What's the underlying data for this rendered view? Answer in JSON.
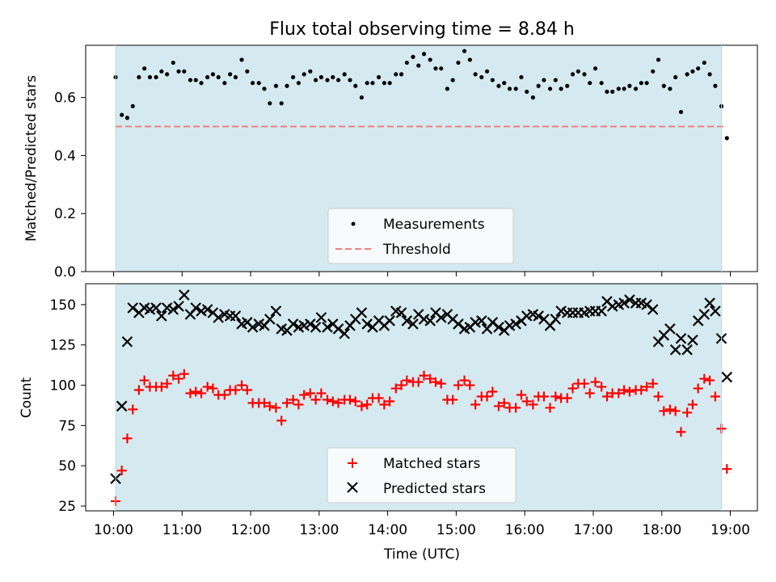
{
  "figure": {
    "title": "Flux total observing time = 8.84 h",
    "xlabel": "Time (UTC)",
    "x_tick_labels": [
      "10:00",
      "11:00",
      "12:00",
      "13:00",
      "14:00",
      "15:00",
      "16:00",
      "17:00",
      "18:00",
      "19:00"
    ],
    "shade_color": "#d4eaf0"
  },
  "chart_data": [
    {
      "type": "scatter",
      "panel": "top",
      "ylabel": "Matched/Predicted stars",
      "ylim": [
        0,
        0.78
      ],
      "yticks": [
        0.0,
        0.2,
        0.4,
        0.6
      ],
      "ytick_labels": [
        "0.0",
        "0.2",
        "0.4",
        "0.6"
      ],
      "x_unit": "hours UTC",
      "observing_window": [
        10.03,
        18.87
      ],
      "legend": {
        "position": "lower center",
        "entries": [
          "Measurements",
          "Threshold"
        ]
      },
      "series": [
        {
          "name": "Measurements",
          "kind": "scatter",
          "color": "#000000",
          "x": [
            10.03,
            10.12,
            10.2,
            10.28,
            10.37,
            10.45,
            10.53,
            10.62,
            10.7,
            10.78,
            10.87,
            10.95,
            11.03,
            11.12,
            11.2,
            11.28,
            11.37,
            11.45,
            11.53,
            11.62,
            11.7,
            11.78,
            11.87,
            11.95,
            12.03,
            12.12,
            12.2,
            12.28,
            12.37,
            12.45,
            12.53,
            12.62,
            12.7,
            12.78,
            12.87,
            12.95,
            13.03,
            13.12,
            13.2,
            13.28,
            13.37,
            13.45,
            13.53,
            13.62,
            13.7,
            13.78,
            13.87,
            13.95,
            14.03,
            14.12,
            14.2,
            14.28,
            14.37,
            14.45,
            14.53,
            14.62,
            14.7,
            14.78,
            14.87,
            14.95,
            15.03,
            15.12,
            15.2,
            15.28,
            15.37,
            15.45,
            15.53,
            15.62,
            15.7,
            15.78,
            15.87,
            15.95,
            16.03,
            16.12,
            16.2,
            16.28,
            16.37,
            16.45,
            16.53,
            16.62,
            16.7,
            16.78,
            16.87,
            16.95,
            17.03,
            17.12,
            17.2,
            17.28,
            17.37,
            17.45,
            17.53,
            17.62,
            17.7,
            17.78,
            17.87,
            17.95,
            18.03,
            18.12,
            18.2,
            18.28,
            18.37,
            18.45,
            18.53,
            18.62,
            18.7,
            18.78,
            18.87,
            18.95
          ],
          "y": [
            0.67,
            0.54,
            0.53,
            0.57,
            0.67,
            0.7,
            0.67,
            0.67,
            0.69,
            0.68,
            0.72,
            0.69,
            0.69,
            0.66,
            0.66,
            0.65,
            0.67,
            0.68,
            0.67,
            0.65,
            0.68,
            0.67,
            0.73,
            0.69,
            0.65,
            0.65,
            0.63,
            0.58,
            0.64,
            0.58,
            0.64,
            0.67,
            0.65,
            0.68,
            0.69,
            0.66,
            0.67,
            0.66,
            0.67,
            0.66,
            0.68,
            0.66,
            0.64,
            0.6,
            0.65,
            0.65,
            0.67,
            0.65,
            0.65,
            0.68,
            0.68,
            0.72,
            0.74,
            0.71,
            0.75,
            0.73,
            0.7,
            0.7,
            0.63,
            0.66,
            0.72,
            0.76,
            0.73,
            0.68,
            0.67,
            0.69,
            0.66,
            0.64,
            0.65,
            0.63,
            0.63,
            0.67,
            0.62,
            0.6,
            0.64,
            0.66,
            0.63,
            0.66,
            0.63,
            0.64,
            0.68,
            0.69,
            0.68,
            0.65,
            0.7,
            0.65,
            0.62,
            0.62,
            0.63,
            0.63,
            0.64,
            0.63,
            0.65,
            0.65,
            0.69,
            0.73,
            0.64,
            0.63,
            0.67,
            0.55,
            0.68,
            0.69,
            0.7,
            0.72,
            0.68,
            0.64,
            0.57,
            0.46
          ]
        },
        {
          "name": "Threshold",
          "kind": "dashed-line",
          "color": "#f08080",
          "x": [
            10.03,
            18.95
          ],
          "y": [
            0.5,
            0.5
          ]
        }
      ]
    },
    {
      "type": "scatter",
      "panel": "bottom",
      "ylabel": "Count",
      "ylim": [
        22,
        163
      ],
      "yticks": [
        25,
        50,
        75,
        100,
        125,
        150
      ],
      "ytick_labels": [
        "25",
        "50",
        "75",
        "100",
        "125",
        "150"
      ],
      "x_unit": "hours UTC",
      "observing_window": [
        10.03,
        18.87
      ],
      "legend": {
        "position": "lower center",
        "entries": [
          "Matched stars",
          "Predicted stars"
        ]
      },
      "series": [
        {
          "name": "Matched stars",
          "marker": "plus",
          "color": "#ff0000",
          "x": [
            10.03,
            10.12,
            10.2,
            10.28,
            10.37,
            10.45,
            10.53,
            10.62,
            10.7,
            10.78,
            10.87,
            10.95,
            11.03,
            11.12,
            11.2,
            11.28,
            11.37,
            11.45,
            11.53,
            11.62,
            11.7,
            11.78,
            11.87,
            11.95,
            12.03,
            12.12,
            12.2,
            12.28,
            12.37,
            12.45,
            12.53,
            12.62,
            12.7,
            12.78,
            12.87,
            12.95,
            13.03,
            13.12,
            13.2,
            13.28,
            13.37,
            13.45,
            13.53,
            13.62,
            13.7,
            13.78,
            13.87,
            13.95,
            14.03,
            14.12,
            14.2,
            14.28,
            14.37,
            14.45,
            14.53,
            14.62,
            14.7,
            14.78,
            14.87,
            14.95,
            15.03,
            15.12,
            15.2,
            15.28,
            15.37,
            15.45,
            15.53,
            15.62,
            15.7,
            15.78,
            15.87,
            15.95,
            16.03,
            16.12,
            16.2,
            16.28,
            16.37,
            16.45,
            16.53,
            16.62,
            16.7,
            16.78,
            16.87,
            16.95,
            17.03,
            17.12,
            17.2,
            17.28,
            17.37,
            17.45,
            17.53,
            17.62,
            17.7,
            17.78,
            17.87,
            17.95,
            18.03,
            18.12,
            18.2,
            18.28,
            18.37,
            18.45,
            18.53,
            18.62,
            18.7,
            18.78,
            18.87,
            18.95
          ],
          "y": [
            28,
            47,
            67,
            85,
            97,
            103,
            99,
            99,
            99,
            101,
            106,
            104,
            107,
            95,
            96,
            95,
            99,
            98,
            94,
            94,
            97,
            97,
            100,
            97,
            89,
            89,
            89,
            87,
            86,
            78,
            89,
            91,
            88,
            94,
            95,
            91,
            95,
            91,
            90,
            89,
            91,
            91,
            90,
            87,
            88,
            92,
            92,
            88,
            90,
            98,
            100,
            103,
            102,
            102,
            106,
            104,
            102,
            101,
            91,
            91,
            100,
            103,
            100,
            88,
            93,
            93,
            96,
            87,
            89,
            86,
            86,
            94,
            90,
            88,
            93,
            93,
            86,
            93,
            92,
            92,
            98,
            101,
            101,
            95,
            102,
            99,
            93,
            95,
            95,
            97,
            96,
            97,
            97,
            99,
            101,
            93,
            84,
            85,
            84,
            71,
            83,
            88,
            98,
            104,
            103,
            93,
            73,
            48
          ]
        },
        {
          "name": "Predicted stars",
          "marker": "x",
          "color": "#000000",
          "x": [
            10.03,
            10.12,
            10.2,
            10.28,
            10.37,
            10.45,
            10.53,
            10.62,
            10.7,
            10.78,
            10.87,
            10.95,
            11.03,
            11.12,
            11.2,
            11.28,
            11.37,
            11.45,
            11.53,
            11.62,
            11.7,
            11.78,
            11.87,
            11.95,
            12.03,
            12.12,
            12.2,
            12.28,
            12.37,
            12.45,
            12.53,
            12.62,
            12.7,
            12.78,
            12.87,
            12.95,
            13.03,
            13.12,
            13.2,
            13.28,
            13.37,
            13.45,
            13.53,
            13.62,
            13.7,
            13.78,
            13.87,
            13.95,
            14.03,
            14.12,
            14.2,
            14.28,
            14.37,
            14.45,
            14.53,
            14.62,
            14.7,
            14.78,
            14.87,
            14.95,
            15.03,
            15.12,
            15.2,
            15.28,
            15.37,
            15.45,
            15.53,
            15.62,
            15.7,
            15.78,
            15.87,
            15.95,
            16.03,
            16.12,
            16.2,
            16.28,
            16.37,
            16.45,
            16.53,
            16.62,
            16.7,
            16.78,
            16.87,
            16.95,
            17.03,
            17.12,
            17.2,
            17.28,
            17.37,
            17.45,
            17.53,
            17.62,
            17.7,
            17.78,
            17.87,
            17.95,
            18.03,
            18.12,
            18.2,
            18.28,
            18.37,
            18.45,
            18.53,
            18.62,
            18.7,
            18.78,
            18.87,
            18.95
          ],
          "y": [
            42,
            87,
            127,
            148,
            145,
            148,
            147,
            148,
            143,
            148,
            147,
            149,
            156,
            144,
            148,
            146,
            147,
            145,
            142,
            144,
            143,
            143,
            138,
            139,
            136,
            138,
            137,
            141,
            146,
            135,
            134,
            138,
            136,
            137,
            138,
            136,
            142,
            136,
            138,
            135,
            132,
            137,
            141,
            145,
            138,
            136,
            140,
            137,
            140,
            146,
            145,
            140,
            138,
            144,
            141,
            140,
            145,
            142,
            144,
            141,
            138,
            135,
            136,
            139,
            140,
            135,
            139,
            136,
            134,
            137,
            138,
            140,
            143,
            144,
            143,
            141,
            137,
            141,
            146,
            145,
            145,
            145,
            145,
            146,
            146,
            146,
            152,
            149,
            150,
            151,
            153,
            151,
            151,
            150,
            147,
            127,
            131,
            135,
            122,
            129,
            122,
            128,
            140,
            144,
            151,
            146,
            129,
            105
          ]
        }
      ]
    }
  ]
}
